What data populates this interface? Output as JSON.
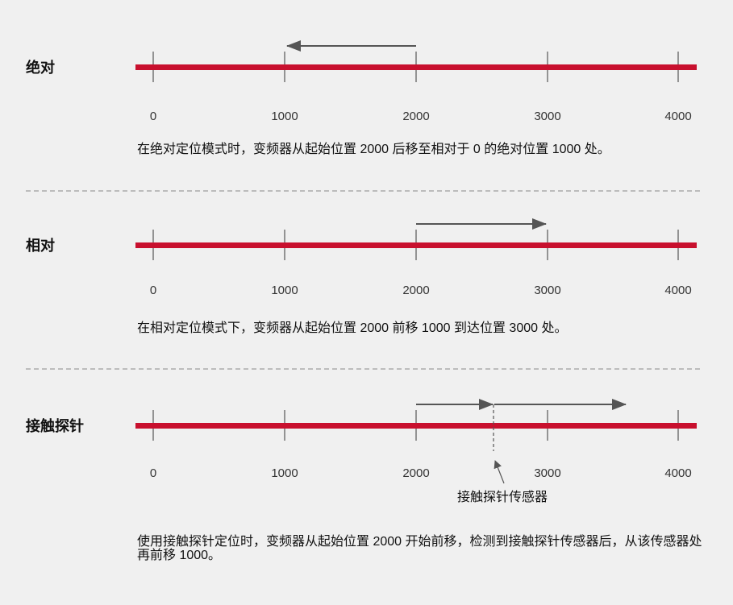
{
  "colors": {
    "background": "#f0f0f0",
    "track": "#c8102e",
    "arrow": "#555555",
    "divider": "#888888"
  },
  "sections": [
    {
      "label": "绝对",
      "ticks": [
        "0",
        "1000",
        "2000",
        "3000",
        "4000"
      ],
      "description": "在绝对定位模式时，变频器从起始位置 2000 后移至相对于 0 的绝对位置 1000 处。",
      "arrow": {
        "from": 2000,
        "to": 1000
      }
    },
    {
      "label": "相对",
      "ticks": [
        "0",
        "1000",
        "2000",
        "3000",
        "4000"
      ],
      "description": "在相对定位模式下，变频器从起始位置 2000 前移 1000 到达位置 3000 处。",
      "arrow": {
        "from": 2000,
        "to": 3000
      }
    },
    {
      "label": "接触探针",
      "ticks": [
        "0",
        "1000",
        "2000",
        "3000",
        "4000"
      ],
      "description": "使用接触探针定位时，变频器从起始位置 2000 开始前移，检测到接触探针传感器后，从该传感器处再前移 1000。",
      "sensor_label": "接触探针传感器",
      "sensor_position": 2600,
      "arrows": [
        {
          "from": 2000,
          "to": 2600
        },
        {
          "from": 2600,
          "to": 3600
        }
      ]
    }
  ]
}
